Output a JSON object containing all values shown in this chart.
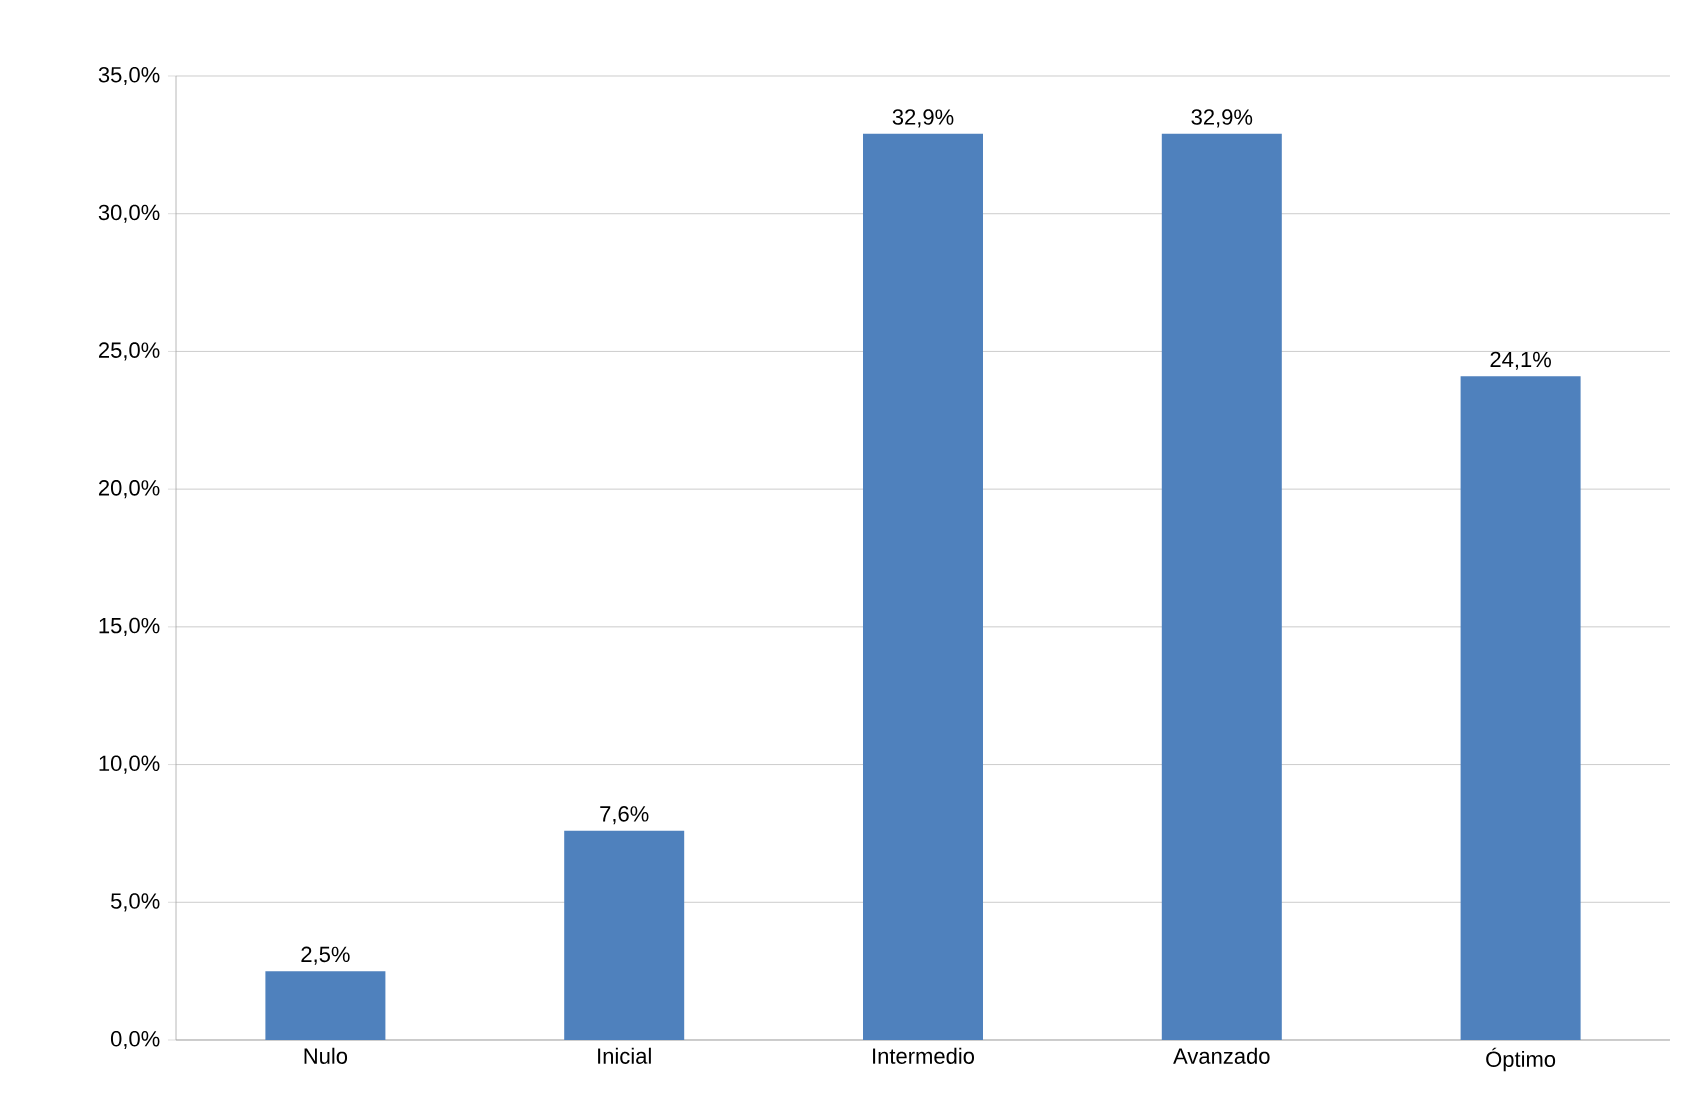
{
  "chart_data": {
    "type": "bar",
    "categories": [
      "Nulo",
      "Inicial",
      "Intermedio",
      "Avanzado",
      "Óptimo"
    ],
    "values": [
      2.5,
      7.6,
      32.9,
      32.9,
      24.1
    ],
    "value_labels": [
      "2,5%",
      "7,6%",
      "32,9%",
      "32,9%",
      "24,1%"
    ],
    "color": "#4f81bd",
    "ylim": [
      0,
      35
    ],
    "yticks": [
      {
        "value": 0,
        "label": "0,0%"
      },
      {
        "value": 5,
        "label": "5,0%"
      },
      {
        "value": 10,
        "label": "10,0%"
      },
      {
        "value": 15,
        "label": "15,0%"
      },
      {
        "value": 20,
        "label": "20,0%"
      },
      {
        "value": 25,
        "label": "25,0%"
      },
      {
        "value": 30,
        "label": "30,0%"
      },
      {
        "value": 35,
        "label": "35,0%"
      }
    ],
    "grid": "y"
  }
}
